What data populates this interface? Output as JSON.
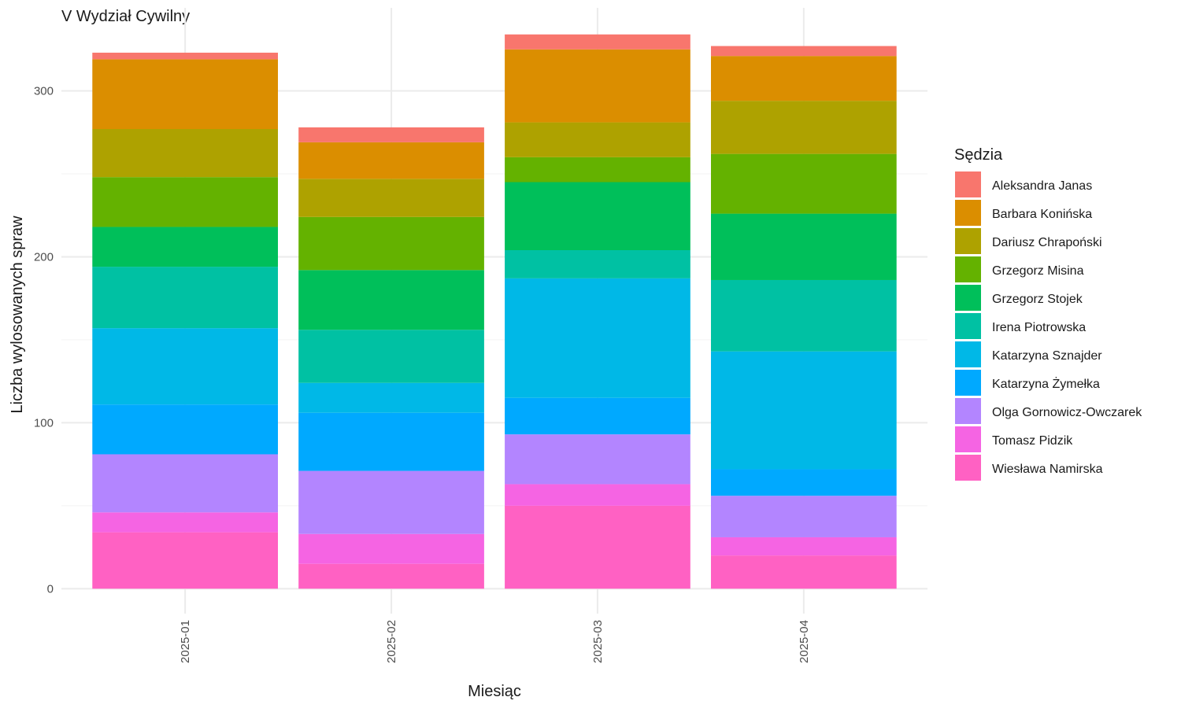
{
  "chart_data": {
    "type": "bar",
    "stacked": true,
    "title": "V Wydział Cywilny",
    "xlabel": "Miesiąc",
    "ylabel": "Liczba wylosowanych spraw",
    "categories": [
      "2025-01",
      "2025-02",
      "2025-03",
      "2025-04"
    ],
    "yticks": [
      0,
      100,
      200,
      300
    ],
    "ylim": [
      -15,
      350
    ],
    "grid": true,
    "legend": {
      "title": "Sędzia",
      "position": "right"
    },
    "series": [
      {
        "name": "Wiesława Namirska",
        "color": "#FF61C3",
        "values": [
          34,
          15,
          50,
          20
        ]
      },
      {
        "name": "Tomasz Pidzik",
        "color": "#F564E3",
        "values": [
          12,
          18,
          13,
          11
        ]
      },
      {
        "name": "Olga Gornowicz-Owczarek",
        "color": "#B385FF",
        "values": [
          35,
          38,
          30,
          25
        ]
      },
      {
        "name": "Katarzyna Żymełka",
        "color": "#00A9FF",
        "values": [
          30,
          35,
          22,
          16
        ]
      },
      {
        "name": "Katarzyna Sznajder",
        "color": "#00B8E7",
        "values": [
          46,
          18,
          72,
          71
        ]
      },
      {
        "name": "Irena Piotrowska",
        "color": "#00C1A3",
        "values": [
          37,
          32,
          17,
          43
        ]
      },
      {
        "name": "Grzegorz Stojek",
        "color": "#00BF5A",
        "values": [
          24,
          36,
          41,
          40
        ]
      },
      {
        "name": "Grzegorz Misina",
        "color": "#64B200",
        "values": [
          30,
          32,
          15,
          36
        ]
      },
      {
        "name": "Dariusz Chrapoński",
        "color": "#AEA200",
        "values": [
          29,
          23,
          21,
          32
        ]
      },
      {
        "name": "Barbara Konińska",
        "color": "#DB8E00",
        "values": [
          42,
          22,
          44,
          27
        ]
      },
      {
        "name": "Aleksandra Janas",
        "color": "#F8766D",
        "values": [
          4,
          9,
          9,
          6
        ]
      }
    ],
    "legend_order": [
      "Aleksandra Janas",
      "Barbara Konińska",
      "Dariusz Chrapoński",
      "Grzegorz Misina",
      "Grzegorz Stojek",
      "Irena Piotrowska",
      "Katarzyna Sznajder",
      "Katarzyna Żymełka",
      "Olga Gornowicz-Owczarek",
      "Tomasz Pidzik",
      "Wiesława Namirska"
    ]
  }
}
